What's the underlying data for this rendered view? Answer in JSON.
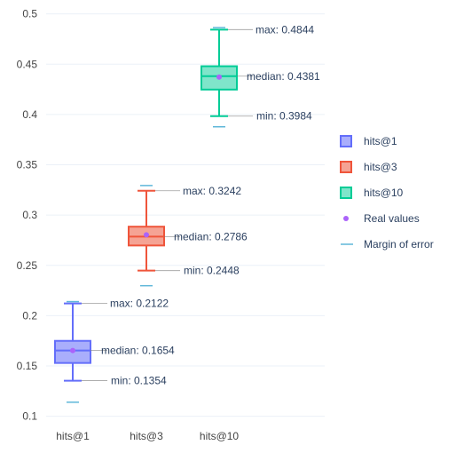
{
  "chart_data": {
    "type": "box",
    "categories": [
      "hits@1",
      "hits@3",
      "hits@10"
    ],
    "y_ticks": [
      0.1,
      0.15,
      0.2,
      0.25,
      0.3,
      0.35,
      0.4,
      0.45,
      0.5
    ],
    "y_tick_labels": [
      "0.1",
      "0.15",
      "0.2",
      "0.25",
      "0.3",
      "0.35",
      "0.4",
      "0.45",
      "0.5"
    ],
    "ylim": [
      0.09,
      0.505
    ],
    "grid": true,
    "legend_position": "right",
    "series": [
      {
        "name": "hits@1",
        "color": "#636efa",
        "fill": "#a9aefc",
        "min": 0.1354,
        "q1": 0.153,
        "median": 0.1654,
        "q3": 0.175,
        "max": 0.2122,
        "real_value": 0.1654,
        "error_low": 0.114,
        "error_high": 0.214,
        "annotations": [
          {
            "text": "max: 0.2122",
            "value": 0.2122
          },
          {
            "text": "median: 0.1654",
            "value": 0.1654
          },
          {
            "text": "min: 0.1354",
            "value": 0.1354
          }
        ]
      },
      {
        "name": "hits@3",
        "color": "#ef553b",
        "fill": "#f5a394",
        "min": 0.2448,
        "q1": 0.2698,
        "median": 0.2786,
        "q3": 0.2885,
        "max": 0.3242,
        "real_value": 0.2804,
        "error_low": 0.2298,
        "error_high": 0.3294,
        "annotations": [
          {
            "text": "max: 0.3242",
            "value": 0.3242
          },
          {
            "text": "median: 0.2786",
            "value": 0.2786
          },
          {
            "text": "min: 0.2448",
            "value": 0.2448
          }
        ]
      },
      {
        "name": "hits@10",
        "color": "#00cc96",
        "fill": "#7fe5ca",
        "min": 0.3984,
        "q1": 0.4248,
        "median": 0.4381,
        "q3": 0.448,
        "max": 0.4844,
        "real_value": 0.4372,
        "error_low": 0.3878,
        "error_high": 0.4864,
        "annotations": [
          {
            "text": "max: 0.4844",
            "value": 0.4844
          },
          {
            "text": "median: 0.4381",
            "value": 0.4381
          },
          {
            "text": "min: 0.3984",
            "value": 0.3984
          }
        ]
      }
    ],
    "legend": [
      {
        "label": "hits@1",
        "kind": "box",
        "color": "#636efa",
        "fill": "#a9aefc"
      },
      {
        "label": "hits@3",
        "kind": "box",
        "color": "#ef553b",
        "fill": "#f5a394"
      },
      {
        "label": "hits@10",
        "kind": "box",
        "color": "#00cc96",
        "fill": "#7fe5ca"
      },
      {
        "label": "Real values",
        "kind": "dot",
        "color": "#ab63fa"
      },
      {
        "label": "Margin of error",
        "kind": "line",
        "color": "#5fb7d9"
      }
    ],
    "colors": {
      "real_value_dot": "#ab63fa",
      "error_marker": "#5fb7d9",
      "grid": "#ebf0f8",
      "annotation_line": "#777777"
    }
  }
}
